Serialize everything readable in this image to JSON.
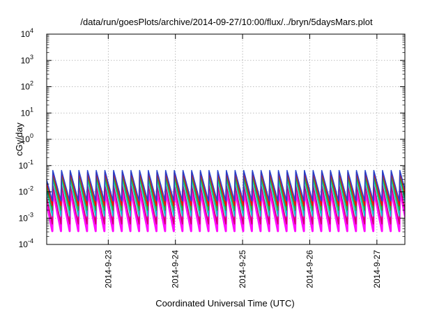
{
  "chart_data": {
    "type": "line",
    "title": "/data/run/goesPlots/archive/2014-09-27/10:00/flux/../bryn/5daysMars.plot",
    "xlabel": "Coordinated Universal Time (UTC)",
    "ylabel": "cGy/day",
    "yscale": "log",
    "ylim": [
      0.0001,
      10000
    ],
    "xlim": [
      "2014-09-22T02:00",
      "2014-09-27T10:00"
    ],
    "grid": true,
    "x_tick_labels": [
      "2014-9-23",
      "2014-9-24",
      "2014-9-25",
      "2014-9-26",
      "2014-9-27"
    ],
    "y_tick_labels": [
      {
        "base": "10",
        "exp": "-4"
      },
      {
        "base": "10",
        "exp": "-3"
      },
      {
        "base": "10",
        "exp": "-2"
      },
      {
        "base": "10",
        "exp": "-1"
      },
      {
        "base": "10",
        "exp": "0"
      },
      {
        "base": "10",
        "exp": "1"
      },
      {
        "base": "10",
        "exp": "2"
      },
      {
        "base": "10",
        "exp": "3"
      },
      {
        "base": "10",
        "exp": "4"
      }
    ],
    "sawtooth_period_hours": 3.1,
    "series": [
      {
        "color": "#ff00ff",
        "peak": 0.012,
        "trough": 0.00032
      },
      {
        "color": "#cc0066",
        "peak": 0.018,
        "trough": 0.0006
      },
      {
        "color": "#00cccc",
        "peak": 0.03,
        "trough": 0.0012
      },
      {
        "color": "#22aa22",
        "peak": 0.04,
        "trough": 0.002
      },
      {
        "color": "#ff0000",
        "peak": 0.055,
        "trough": 0.003
      },
      {
        "color": "#1f3fd0",
        "peak": 0.065,
        "trough": 0.0045
      }
    ]
  }
}
